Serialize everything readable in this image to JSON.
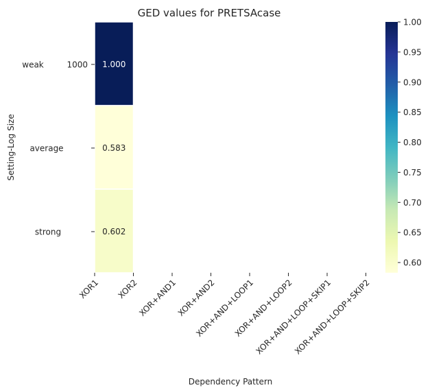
{
  "chart_data": {
    "type": "heatmap",
    "title": "GED values for PRETSAcase",
    "xlabel": "Dependency Pattern",
    "ylabel": "Setting-Log Size",
    "x_tick_labels": [
      "XOR1",
      "XOR2",
      "XOR+AND1",
      "XOR+AND2",
      "XOR+AND+LOOP1",
      "XOR+AND+LOOP2",
      "XOR+AND+LOOP+SKIP1",
      "XOR+AND+LOOP+SKIP2"
    ],
    "y_rows": [
      {
        "setting": "weak",
        "log_size": "1000"
      },
      {
        "setting": "average",
        "log_size": ""
      },
      {
        "setting": "strong",
        "log_size": ""
      }
    ],
    "cells": [
      {
        "row": 0,
        "col": 0,
        "value": 1.0,
        "label": "1.000",
        "color": "#081d58"
      },
      {
        "row": 1,
        "col": 0,
        "value": 0.583,
        "label": "0.583",
        "color": "#ffffd9"
      },
      {
        "row": 2,
        "col": 0,
        "value": 0.602,
        "label": "0.602",
        "color": "#f7fcc9"
      }
    ],
    "colorbar": {
      "colormap": "YlGnBu",
      "min": 0.583,
      "max": 1.0,
      "ticks": [
        1.0,
        0.95,
        0.9,
        0.85,
        0.8,
        0.75,
        0.7,
        0.65,
        0.6
      ],
      "tick_labels": [
        "1.00",
        "0.95",
        "0.90",
        "0.85",
        "0.80",
        "0.75",
        "0.70",
        "0.65",
        "0.60"
      ]
    },
    "grid": false
  }
}
